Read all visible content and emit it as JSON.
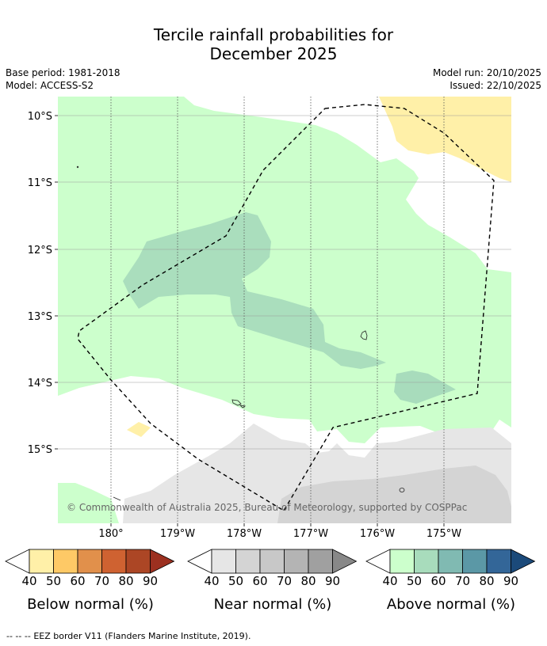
{
  "title": {
    "line1": "Tercile rainfall probabilities for",
    "line2": "December 2025"
  },
  "meta": {
    "base_period": "Base period: 1981-2018",
    "model": "Model: ACCESS-S2",
    "model_run": "Model run: 20/10/2025",
    "issued": "Issued: 22/10/2025"
  },
  "map": {
    "lat_labels": [
      "10°S",
      "11°S",
      "12°S",
      "13°S",
      "14°S",
      "15°S"
    ],
    "lon_labels": [
      "180°",
      "179°W",
      "178°W",
      "177°W",
      "176°W",
      "175°W"
    ],
    "copyright": "© Commonwealth of Australia 2025, Bureau of Meteorology, supported by COSPPac"
  },
  "colors": {
    "below": [
      "#fff0a8",
      "#fec966",
      "#e1904b",
      "#cf6231",
      "#ac4625",
      "#9c3020"
    ],
    "near": [
      "#e6e6e6",
      "#d4d4d4",
      "#c8c8c8",
      "#b4b4b4",
      "#a0a0a0",
      "#888888"
    ],
    "above": [
      "#ccffcc",
      "#a8dcbc",
      "#80bab2",
      "#5b98a6",
      "#336698",
      "#1b4a7a"
    ]
  },
  "legends": {
    "ticks": [
      "40",
      "50",
      "60",
      "70",
      "80",
      "90"
    ],
    "below_label": "Below normal (%)",
    "near_label": "Near normal (%)",
    "above_label": "Above normal (%)"
  },
  "footer": {
    "eez_symbol": "-- -- --",
    "eez_text": "EEZ border V11 (Flanders Marine Institute, 2019)."
  }
}
